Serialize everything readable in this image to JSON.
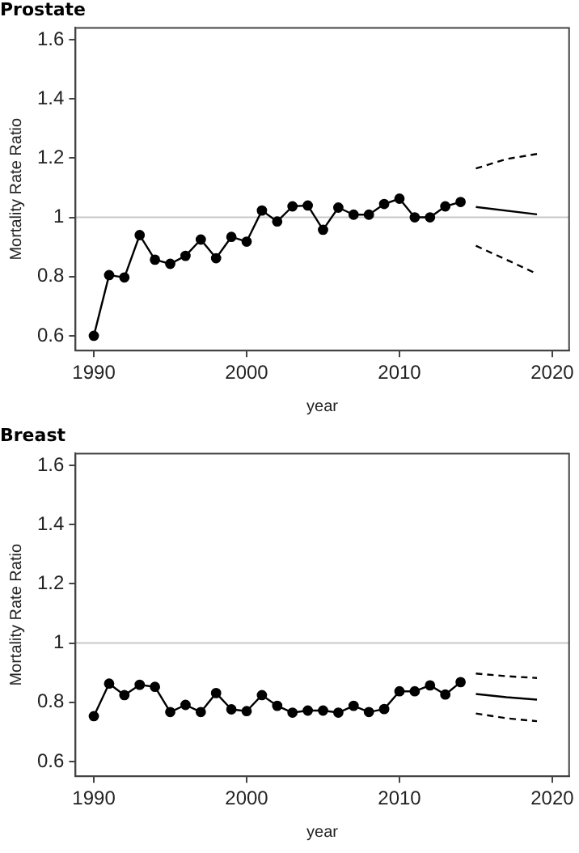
{
  "chart_data": [
    {
      "type": "line",
      "title": "Prostate",
      "xlabel": "year",
      "ylabel": "Mortality Rate Ratio",
      "xlim": [
        1988.8,
        2021.1
      ],
      "ylim": [
        0.55,
        1.64
      ],
      "xticks": [
        1990,
        2000,
        2010,
        2020
      ],
      "yticks": [
        0.6,
        0.8,
        1,
        1.2,
        1.4,
        1.6
      ],
      "grid": false,
      "legend": false,
      "ref_lines": [
        {
          "axis": "y",
          "value": 1,
          "color": "#c8c8c8",
          "line_style": "solid"
        }
      ],
      "series": [
        {
          "color": "#000000",
          "marker": "circle",
          "line_style": "solid",
          "x": [
            1990,
            1991,
            1992,
            1993,
            1994,
            1995,
            1996,
            1997,
            1998,
            1999,
            2000,
            2001,
            2002,
            2003,
            2004,
            2005,
            2006,
            2007,
            2008,
            2009,
            2010,
            2011,
            2012,
            2013,
            2014
          ],
          "values": [
            0.6,
            0.805,
            0.797,
            0.94,
            0.857,
            0.843,
            0.87,
            0.925,
            0.862,
            0.934,
            0.918,
            1.023,
            0.986,
            1.037,
            1.04,
            0.958,
            1.033,
            1.009,
            1.009,
            1.045,
            1.063,
            1.0,
            1.0,
            1.037,
            1.052
          ]
        },
        {
          "color": "#000000",
          "marker": "none",
          "line_style": "solid",
          "x": [
            2015,
            2019
          ],
          "values": [
            1.035,
            1.01
          ]
        },
        {
          "color": "#000000",
          "marker": "none",
          "line_style": "dashed",
          "x": [
            2015,
            2017,
            2019
          ],
          "values": [
            1.165,
            1.197,
            1.214
          ]
        },
        {
          "color": "#000000",
          "marker": "none",
          "line_style": "dashed",
          "x": [
            2015,
            2017,
            2019
          ],
          "values": [
            0.904,
            0.857,
            0.809
          ]
        }
      ]
    },
    {
      "type": "line",
      "title": "Breast",
      "xlabel": "year",
      "ylabel": "Mortality Rate Ratio",
      "xlim": [
        1988.8,
        2021.1
      ],
      "ylim": [
        0.55,
        1.64
      ],
      "xticks": [
        1990,
        2000,
        2010,
        2020
      ],
      "yticks": [
        0.6,
        0.8,
        1,
        1.2,
        1.4,
        1.6
      ],
      "grid": false,
      "legend": false,
      "ref_lines": [
        {
          "axis": "y",
          "value": 1,
          "color": "#c8c8c8",
          "line_style": "solid"
        }
      ],
      "series": [
        {
          "color": "#000000",
          "marker": "circle",
          "line_style": "solid",
          "x": [
            1990,
            1991,
            1992,
            1993,
            1994,
            1995,
            1996,
            1997,
            1998,
            1999,
            2000,
            2001,
            2002,
            2003,
            2004,
            2005,
            2006,
            2007,
            2008,
            2009,
            2010,
            2011,
            2012,
            2013,
            2014
          ],
          "values": [
            0.753,
            0.863,
            0.824,
            0.859,
            0.852,
            0.767,
            0.791,
            0.767,
            0.831,
            0.776,
            0.77,
            0.824,
            0.788,
            0.765,
            0.772,
            0.772,
            0.765,
            0.788,
            0.767,
            0.777,
            0.837,
            0.837,
            0.857,
            0.826,
            0.868
          ]
        },
        {
          "color": "#000000",
          "marker": "none",
          "line_style": "solid",
          "x": [
            2015,
            2017,
            2019
          ],
          "values": [
            0.828,
            0.817,
            0.809
          ]
        },
        {
          "color": "#000000",
          "marker": "none",
          "line_style": "dashed",
          "x": [
            2015,
            2017,
            2019
          ],
          "values": [
            0.897,
            0.888,
            0.882
          ]
        },
        {
          "color": "#000000",
          "marker": "none",
          "line_style": "dashed",
          "x": [
            2015,
            2017,
            2019
          ],
          "values": [
            0.762,
            0.746,
            0.736
          ]
        }
      ]
    }
  ]
}
